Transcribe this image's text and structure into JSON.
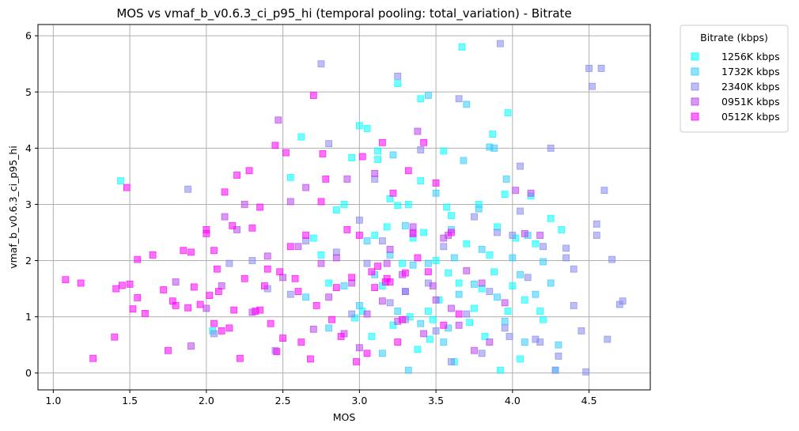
{
  "chart_data": {
    "type": "scatter",
    "title": "MOS vs vmaf_b_v0.6.3_ci_p95_hi (temporal pooling: total_variation) - Bitrate",
    "xlabel": "MOS",
    "ylabel": "vmaf_b_v0.6.3_ci_p95_hi",
    "xlim": [
      0.9,
      4.9
    ],
    "ylim": [
      -0.3,
      6.2
    ],
    "xticks": [
      1.0,
      1.5,
      2.0,
      2.5,
      3.0,
      3.5,
      4.0,
      4.5
    ],
    "xtick_labels": [
      "1.0",
      "1.5",
      "2.0",
      "2.5",
      "3.0",
      "3.5",
      "4.0",
      "4.5"
    ],
    "yticks": [
      0,
      1,
      2,
      3,
      4,
      5,
      6
    ],
    "ytick_labels": [
      "0",
      "1",
      "2",
      "3",
      "4",
      "5",
      "6"
    ],
    "grid": true,
    "marker": "square",
    "legend": {
      "title": "Bitrate (kbps)",
      "placement": "outside-top-right"
    },
    "series": [
      {
        "name": "1256K kbps",
        "color": "#00ffff",
        "points": [
          [
            1.44,
            3.42
          ],
          [
            2.04,
            0.75
          ],
          [
            2.55,
            3.48
          ],
          [
            2.62,
            4.2
          ],
          [
            2.7,
            2.4
          ],
          [
            2.75,
            2.1
          ],
          [
            2.8,
            1.6
          ],
          [
            2.85,
            2.9
          ],
          [
            2.9,
            3.0
          ],
          [
            2.95,
            3.83
          ],
          [
            2.97,
            0.98
          ],
          [
            3.0,
            4.4
          ],
          [
            3.02,
            1.1
          ],
          [
            3.05,
            4.35
          ],
          [
            3.08,
            0.65
          ],
          [
            3.1,
            2.45
          ],
          [
            3.12,
            3.95
          ],
          [
            3.15,
            1.55
          ],
          [
            3.18,
            2.6
          ],
          [
            3.2,
            3.1
          ],
          [
            3.22,
            0.85
          ],
          [
            3.25,
            2.98
          ],
          [
            3.28,
            1.95
          ],
          [
            3.3,
            1.45
          ],
          [
            3.32,
            3.0
          ],
          [
            3.35,
            2.4
          ],
          [
            3.38,
            0.42
          ],
          [
            3.4,
            3.42
          ],
          [
            3.42,
            2.5
          ],
          [
            3.45,
            1.1
          ],
          [
            3.48,
            0.95
          ],
          [
            3.5,
            2.0
          ],
          [
            3.52,
            1.3
          ],
          [
            3.55,
            3.95
          ],
          [
            3.58,
            1.78
          ],
          [
            3.6,
            2.8
          ],
          [
            3.62,
            0.2
          ],
          [
            3.65,
            1.6
          ],
          [
            3.67,
            5.8
          ],
          [
            3.7,
            2.3
          ],
          [
            3.72,
            0.9
          ],
          [
            3.75,
            1.15
          ],
          [
            3.78,
            3.0
          ],
          [
            3.8,
            1.5
          ],
          [
            3.82,
            0.65
          ],
          [
            3.85,
            2.1
          ],
          [
            3.88,
            1.8
          ],
          [
            3.9,
            2.6
          ],
          [
            3.92,
            0.05
          ],
          [
            3.95,
            3.18
          ],
          [
            3.97,
            1.1
          ],
          [
            4.0,
            1.55
          ],
          [
            4.02,
            2.4
          ],
          [
            4.05,
            0.25
          ],
          [
            4.08,
            1.3
          ],
          [
            4.12,
            3.15
          ],
          [
            4.15,
            2.3
          ],
          [
            4.18,
            1.1
          ],
          [
            4.2,
            0.95
          ],
          [
            4.25,
            2.75
          ],
          [
            4.28,
            0.05
          ],
          [
            4.32,
            2.55
          ],
          [
            3.4,
            4.88
          ],
          [
            3.25,
            5.15
          ],
          [
            3.12,
            3.8
          ],
          [
            3.33,
            1.0
          ],
          [
            3.46,
            0.6
          ],
          [
            3.57,
            2.95
          ],
          [
            3.87,
            4.25
          ],
          [
            3.97,
            4.63
          ]
        ]
      },
      {
        "name": "1732K kbps",
        "color": "#33ccff",
        "points": [
          [
            2.65,
            1.35
          ],
          [
            2.8,
            0.8
          ],
          [
            2.9,
            1.55
          ],
          [
            3.0,
            1.2
          ],
          [
            3.05,
            2.35
          ],
          [
            3.1,
            1.75
          ],
          [
            3.15,
            0.35
          ],
          [
            3.2,
            2.1
          ],
          [
            3.25,
            1.1
          ],
          [
            3.3,
            2.62
          ],
          [
            3.35,
            1.92
          ],
          [
            3.4,
            0.88
          ],
          [
            3.45,
            1.95
          ],
          [
            3.5,
            3.2
          ],
          [
            3.55,
            0.55
          ],
          [
            3.6,
            2.55
          ],
          [
            3.65,
            1.4
          ],
          [
            3.7,
            4.78
          ],
          [
            3.75,
            1.58
          ],
          [
            3.8,
            2.2
          ],
          [
            3.85,
            4.02
          ],
          [
            3.9,
            1.35
          ],
          [
            3.95,
            0.92
          ],
          [
            4.0,
            2.05
          ],
          [
            4.05,
            1.75
          ],
          [
            4.1,
            2.45
          ],
          [
            4.15,
            1.4
          ],
          [
            4.2,
            1.98
          ],
          [
            4.25,
            1.6
          ],
          [
            4.3,
            0.5
          ],
          [
            3.45,
            4.94
          ],
          [
            3.78,
            2.92
          ],
          [
            3.68,
            3.78
          ],
          [
            3.22,
            3.88
          ],
          [
            3.58,
            0.8
          ],
          [
            3.96,
            3.45
          ],
          [
            3.88,
            4.0
          ],
          [
            3.62,
            2.05
          ],
          [
            3.32,
            0.05
          ],
          [
            4.08,
            0.55
          ]
        ]
      },
      {
        "name": "2340K kbps",
        "color": "#8888ee",
        "points": [
          [
            1.88,
            3.27
          ],
          [
            2.05,
            0.7
          ],
          [
            2.15,
            1.95
          ],
          [
            2.3,
            2.0
          ],
          [
            2.4,
            1.5
          ],
          [
            2.45,
            0.4
          ],
          [
            2.55,
            1.4
          ],
          [
            2.65,
            2.35
          ],
          [
            2.75,
            5.5
          ],
          [
            2.8,
            4.08
          ],
          [
            2.85,
            2.15
          ],
          [
            2.95,
            1.05
          ],
          [
            3.0,
            2.72
          ],
          [
            3.05,
            1.95
          ],
          [
            3.1,
            3.45
          ],
          [
            3.15,
            2.35
          ],
          [
            3.2,
            1.25
          ],
          [
            3.25,
            5.28
          ],
          [
            3.3,
            0.95
          ],
          [
            3.35,
            2.5
          ],
          [
            3.4,
            3.97
          ],
          [
            3.45,
            1.6
          ],
          [
            3.5,
            0.75
          ],
          [
            3.55,
            2.25
          ],
          [
            3.6,
            0.2
          ],
          [
            3.65,
            4.88
          ],
          [
            3.7,
            1.05
          ],
          [
            3.75,
            2.78
          ],
          [
            3.8,
            0.35
          ],
          [
            3.85,
            1.45
          ],
          [
            3.9,
            2.5
          ],
          [
            3.92,
            5.86
          ],
          [
            3.95,
            0.8
          ],
          [
            4.0,
            2.45
          ],
          [
            4.05,
            3.68
          ],
          [
            4.1,
            1.7
          ],
          [
            4.15,
            0.6
          ],
          [
            4.2,
            2.25
          ],
          [
            4.25,
            4.0
          ],
          [
            4.3,
            0.3
          ],
          [
            4.35,
            2.05
          ],
          [
            4.4,
            1.2
          ],
          [
            4.45,
            0.75
          ],
          [
            4.5,
            5.42
          ],
          [
            4.52,
            5.1
          ],
          [
            4.55,
            2.45
          ],
          [
            4.58,
            5.42
          ],
          [
            4.6,
            3.25
          ],
          [
            4.62,
            0.6
          ],
          [
            4.65,
            2.02
          ],
          [
            4.7,
            1.22
          ],
          [
            4.72,
            1.28
          ],
          [
            4.55,
            2.65
          ],
          [
            4.48,
            0.02
          ],
          [
            4.4,
            1.85
          ],
          [
            4.35,
            2.22
          ],
          [
            4.28,
            0.05
          ],
          [
            4.18,
            0.55
          ],
          [
            4.05,
            2.88
          ],
          [
            3.98,
            0.65
          ]
        ]
      },
      {
        "name": "0951K kbps",
        "color": "#bb44ee",
        "points": [
          [
            1.8,
            1.62
          ],
          [
            1.9,
            0.48
          ],
          [
            2.0,
            1.15
          ],
          [
            2.1,
            1.55
          ],
          [
            2.2,
            2.55
          ],
          [
            2.3,
            1.08
          ],
          [
            2.4,
            2.08
          ],
          [
            2.47,
            4.5
          ],
          [
            2.5,
            1.7
          ],
          [
            2.6,
            2.25
          ],
          [
            2.65,
            3.3
          ],
          [
            2.7,
            0.78
          ],
          [
            2.75,
            1.95
          ],
          [
            2.8,
            1.35
          ],
          [
            2.85,
            2.05
          ],
          [
            2.9,
            0.7
          ],
          [
            2.95,
            1.6
          ],
          [
            3.0,
            0.45
          ],
          [
            3.05,
            1.05
          ],
          [
            3.1,
            3.55
          ],
          [
            3.15,
            1.28
          ],
          [
            3.2,
            2.2
          ],
          [
            3.25,
            0.92
          ],
          [
            3.3,
            1.45
          ],
          [
            3.35,
            2.6
          ],
          [
            3.38,
            4.3
          ],
          [
            3.42,
            0.7
          ],
          [
            3.5,
            1.3
          ],
          [
            3.55,
            2.4
          ],
          [
            3.6,
            1.15
          ],
          [
            3.65,
            0.85
          ],
          [
            3.7,
            1.82
          ],
          [
            3.75,
            0.4
          ],
          [
            3.8,
            1.6
          ],
          [
            3.85,
            0.55
          ],
          [
            3.95,
            1.25
          ],
          [
            4.02,
            3.25
          ],
          [
            4.08,
            2.48
          ],
          [
            4.12,
            3.2
          ],
          [
            4.18,
            2.45
          ],
          [
            2.12,
            2.78
          ],
          [
            2.25,
            3.0
          ],
          [
            2.55,
            3.05
          ],
          [
            2.92,
            3.45
          ],
          [
            3.18,
            1.95
          ],
          [
            3.48,
            1.55
          ],
          [
            3.58,
            2.45
          ],
          [
            3.28,
            1.75
          ]
        ]
      },
      {
        "name": "0512K kbps",
        "color": "#ff00ff",
        "points": [
          [
            1.08,
            1.66
          ],
          [
            1.18,
            1.6
          ],
          [
            1.26,
            0.26
          ],
          [
            1.4,
            0.64
          ],
          [
            1.41,
            1.5
          ],
          [
            1.45,
            1.56
          ],
          [
            1.48,
            3.3
          ],
          [
            1.5,
            1.58
          ],
          [
            1.52,
            1.14
          ],
          [
            1.55,
            1.34
          ],
          [
            1.6,
            1.06
          ],
          [
            1.65,
            2.1
          ],
          [
            1.72,
            1.48
          ],
          [
            1.75,
            0.4
          ],
          [
            1.78,
            1.28
          ],
          [
            1.8,
            1.2
          ],
          [
            1.85,
            2.18
          ],
          [
            1.88,
            1.16
          ],
          [
            1.92,
            1.53
          ],
          [
            1.96,
            1.22
          ],
          [
            2.0,
            2.48
          ],
          [
            2.02,
            1.38
          ],
          [
            2.05,
            0.88
          ],
          [
            2.07,
            1.85
          ],
          [
            2.08,
            1.45
          ],
          [
            2.1,
            0.75
          ],
          [
            2.12,
            3.22
          ],
          [
            2.15,
            0.8
          ],
          [
            2.18,
            1.12
          ],
          [
            2.2,
            3.52
          ],
          [
            2.22,
            0.26
          ],
          [
            2.25,
            1.68
          ],
          [
            2.28,
            3.6
          ],
          [
            2.3,
            2.58
          ],
          [
            2.32,
            1.1
          ],
          [
            2.35,
            2.95
          ],
          [
            2.38,
            1.55
          ],
          [
            2.4,
            1.85
          ],
          [
            2.42,
            0.88
          ],
          [
            2.45,
            4.05
          ],
          [
            2.48,
            1.8
          ],
          [
            2.5,
            0.62
          ],
          [
            2.52,
            3.92
          ],
          [
            2.55,
            2.25
          ],
          [
            2.6,
            1.45
          ],
          [
            2.62,
            0.55
          ],
          [
            2.68,
            0.25
          ],
          [
            2.7,
            4.94
          ],
          [
            2.72,
            1.2
          ],
          [
            2.75,
            3.05
          ],
          [
            2.78,
            3.45
          ],
          [
            2.82,
            0.95
          ],
          [
            2.85,
            1.52
          ],
          [
            2.88,
            0.65
          ],
          [
            2.92,
            2.55
          ],
          [
            2.95,
            1.7
          ],
          [
            2.98,
            0.2
          ],
          [
            3.0,
            2.45
          ],
          [
            3.02,
            3.85
          ],
          [
            3.05,
            0.35
          ],
          [
            3.08,
            1.8
          ],
          [
            3.12,
            1.9
          ],
          [
            3.15,
            4.1
          ],
          [
            3.17,
            1.62
          ],
          [
            3.2,
            1.62
          ],
          [
            3.22,
            3.2
          ],
          [
            3.25,
            0.55
          ],
          [
            3.28,
            0.95
          ],
          [
            3.32,
            3.6
          ],
          [
            3.35,
            2.48
          ],
          [
            3.38,
            2.05
          ],
          [
            3.42,
            4.1
          ],
          [
            3.45,
            1.8
          ],
          [
            3.5,
            3.38
          ],
          [
            3.55,
            0.85
          ],
          [
            3.6,
            2.5
          ],
          [
            3.65,
            1.05
          ],
          [
            1.55,
            2.02
          ],
          [
            1.9,
            2.15
          ],
          [
            2.0,
            2.55
          ],
          [
            2.17,
            2.62
          ],
          [
            2.35,
            1.12
          ],
          [
            2.58,
            1.68
          ],
          [
            2.76,
            3.9
          ],
          [
            3.1,
            1.52
          ],
          [
            3.3,
            1.78
          ],
          [
            3.18,
            1.68
          ],
          [
            2.65,
            2.45
          ],
          [
            2.05,
            2.18
          ],
          [
            2.46,
            0.38
          ]
        ]
      }
    ]
  }
}
